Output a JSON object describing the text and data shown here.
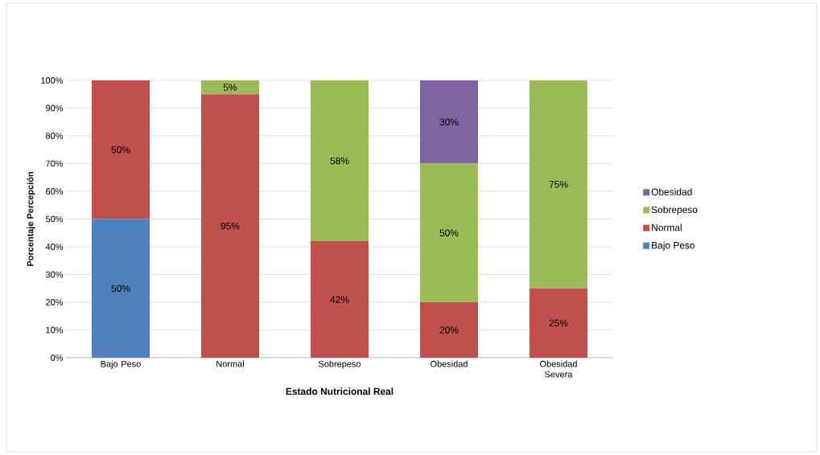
{
  "chart_data": {
    "type": "bar",
    "stacked": true,
    "xlabel": "Estado Nutricional Real",
    "ylabel": "Porcentaje Percepción",
    "categories": [
      "Bajo Peso",
      "Normal",
      "Sobrepeso",
      "Obesidad",
      "Obesidad Severa"
    ],
    "series": [
      {
        "name": "Bajo Peso",
        "color": "#4f81bd",
        "values": [
          50,
          0,
          0,
          0,
          0
        ],
        "value_labels": [
          "50%",
          null,
          null,
          null,
          null
        ]
      },
      {
        "name": "Normal",
        "color": "#c0504d",
        "values": [
          50,
          95,
          42,
          20,
          25
        ],
        "value_labels": [
          "50%",
          "95%",
          "42%",
          "20%",
          "25%"
        ]
      },
      {
        "name": "Sobrepeso",
        "color": "#9bbb59",
        "values": [
          0,
          5,
          58,
          50,
          75
        ],
        "value_labels": [
          null,
          "5%",
          "58%",
          "50%",
          "75%"
        ]
      },
      {
        "name": "Obesidad",
        "color": "#8064a2",
        "values": [
          0,
          0,
          0,
          30,
          0
        ],
        "value_labels": [
          null,
          null,
          null,
          "30%",
          null
        ]
      }
    ],
    "ylim": [
      0,
      100
    ],
    "yticks": [
      {
        "value": 0,
        "label": "0%"
      },
      {
        "value": 10,
        "label": "10%"
      },
      {
        "value": 20,
        "label": "20%"
      },
      {
        "value": 30,
        "label": "30%"
      },
      {
        "value": 40,
        "label": "40%"
      },
      {
        "value": 50,
        "label": "50%"
      },
      {
        "value": 60,
        "label": "60%"
      },
      {
        "value": 70,
        "label": "70%"
      },
      {
        "value": 80,
        "label": "80%"
      },
      {
        "value": 90,
        "label": "90%"
      },
      {
        "value": 100,
        "label": "100%"
      }
    ],
    "grid": "y",
    "legend": "right"
  }
}
